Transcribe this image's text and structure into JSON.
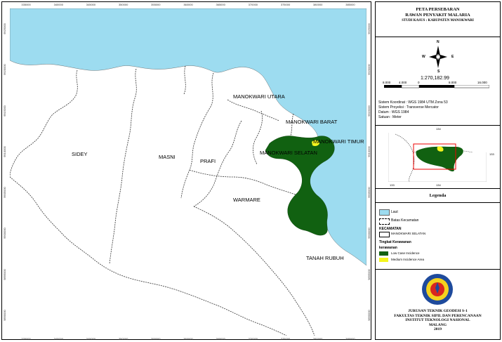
{
  "map": {
    "top_ticks": [
      "335000",
      "340000",
      "345000",
      "350000",
      "355000",
      "360000",
      "365000",
      "370000",
      "375000",
      "380000",
      "385000"
    ],
    "bottom_ticks": [
      "335000",
      "340000",
      "345000",
      "350000",
      "355000",
      "360000",
      "365000",
      "370000",
      "375000",
      "380000",
      "385000"
    ],
    "left_ticks": [
      "9925000",
      "9920000",
      "9915000",
      "9910000",
      "9905000",
      "9900000",
      "9895000",
      "9890000"
    ],
    "right_ticks": [
      "9925000",
      "9920000",
      "9915000",
      "9910000",
      "9905000",
      "9900000",
      "9895000",
      "9890000"
    ],
    "districts": {
      "sidey": "SIDEY",
      "masni": "MASNI",
      "prafi": "PRAFI",
      "warmare": "WARMARE",
      "manokwari_utara": "MANOKWARI UTARA",
      "manokwari_barat": "MANOKWARI BARAT",
      "manokwari_selatan": "MANOKWARI SELATAN",
      "manokwari_timur": "MANOKWARI TIMUR",
      "tanah_rubuh": "TANAH RUBUH"
    },
    "colors": {
      "sea": "#9ddcf0",
      "low_case": "#116111",
      "medium": "#f4f51e",
      "land": "#ffffff"
    }
  },
  "panel": {
    "title_line1": "PETA PERSEBARAN",
    "title_line2": "RAWAN PENYAKIT MALARIA",
    "subtitle": "STUDI KASUS : KABUPATEN MANOKWARI",
    "compass": {
      "n": "N",
      "s": "S",
      "e": "E",
      "w": "W"
    },
    "scale_text": "1:270,182.99",
    "scale_ticks": [
      "8.000",
      "4.000",
      "0",
      "8.000",
      "16.000"
    ],
    "system_lines": [
      "Sistem Koordinat : WGS 1984 UTM Zona 53",
      "Sistem Proyeksi : Transverse Mercator",
      "Datum : WGS 1984",
      "Satuan : Meter"
    ],
    "inset_labels": {
      "top": "134",
      "right": "133",
      "bottom_left": "133",
      "bottom_right": "134"
    },
    "legend_title": "Legenda",
    "legend": {
      "laut": "Laut",
      "batas": "Batas Kecamatan",
      "kecamatan_header": "KECAMATAN",
      "kecamatan_item": "MANOKWARI SELATAN",
      "tingkat_header": "Tingkat Kerawanan",
      "kerawanan_header": "kerawanan",
      "low": "Low Case Incidence",
      "medium": "Medium Incidence Area"
    },
    "univ_lines": [
      "JURUSAN TEKNIK GEODESI S-1",
      "FAKULTAS TEKNIK SIPIL DAN PERENCANAAN",
      "INSTITUT TEKNOLOGI NASIONAL",
      "MALANG",
      "2019"
    ]
  }
}
